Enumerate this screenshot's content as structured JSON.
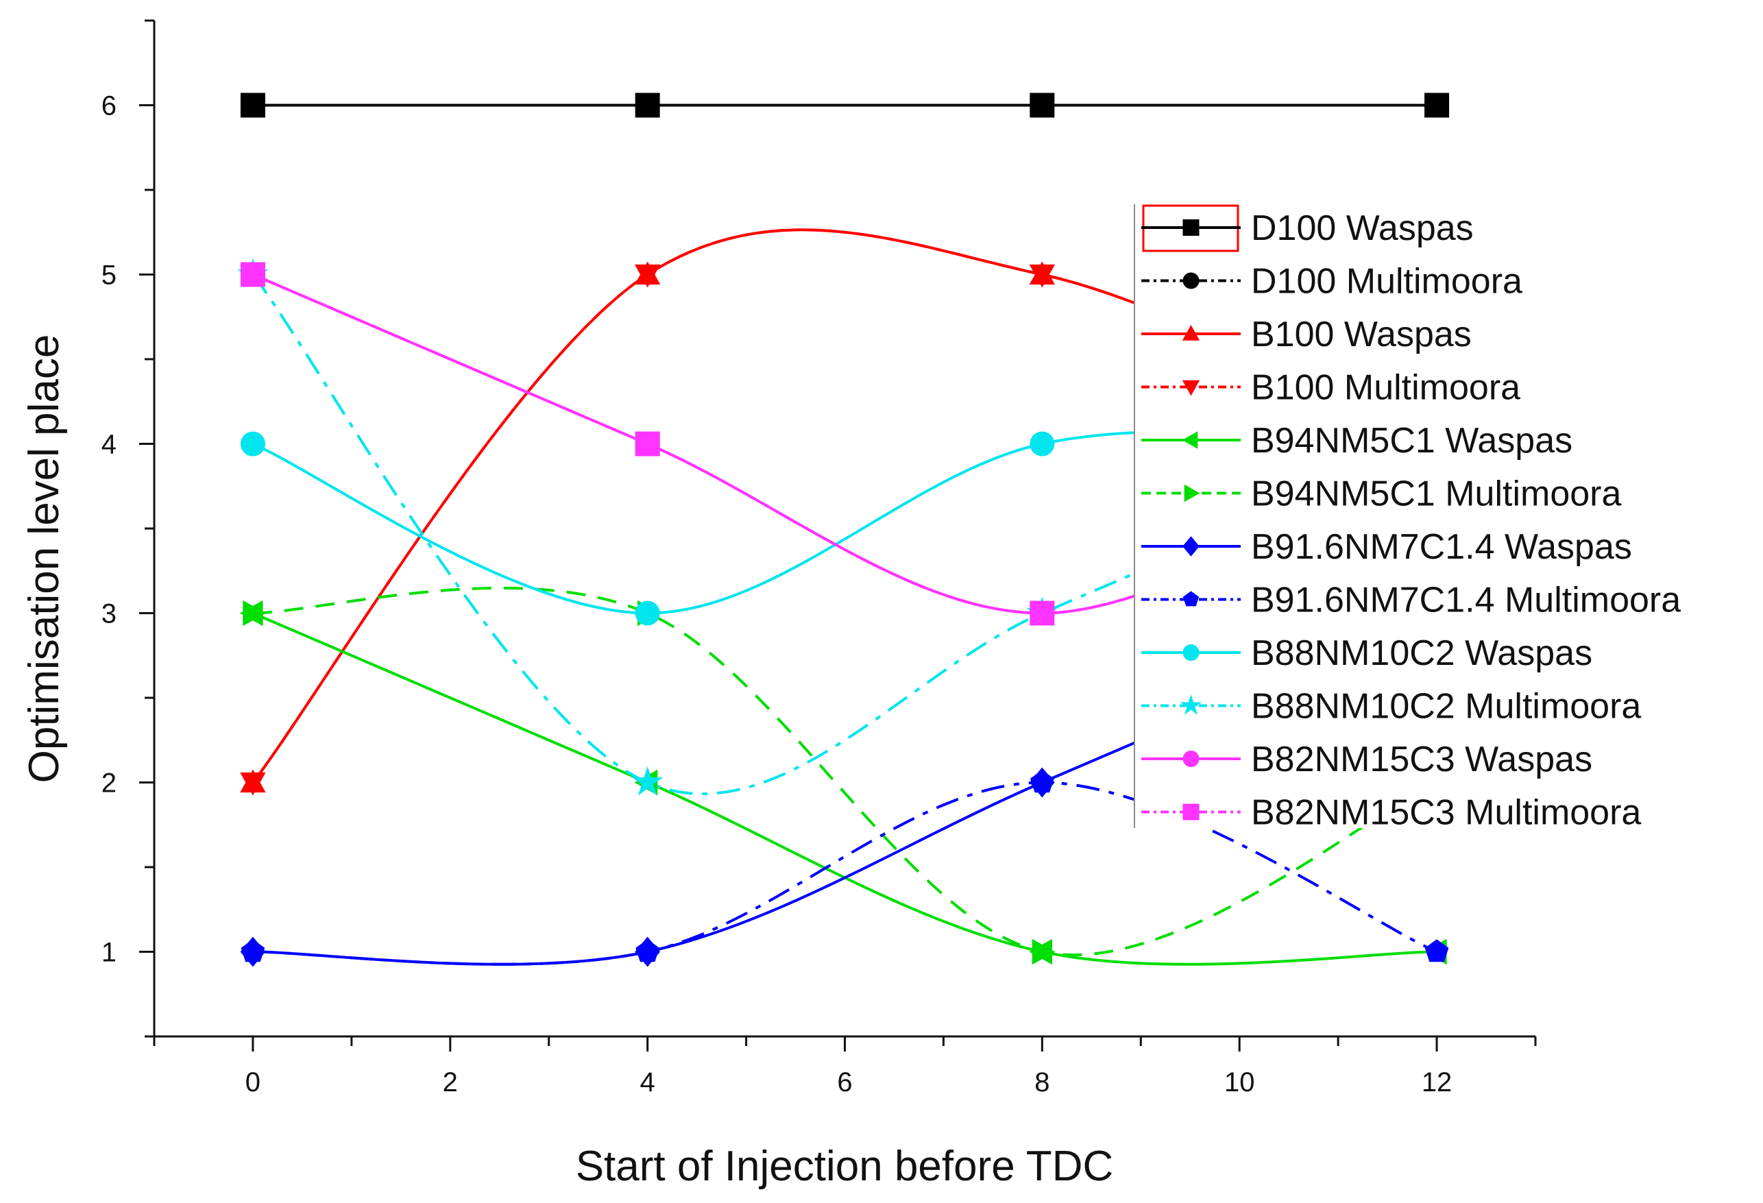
{
  "chart_data": {
    "type": "line",
    "xlabel": "Start of Injection before TDC",
    "ylabel": "Optimisation level place",
    "xlim": [
      -1,
      13
    ],
    "ylim": [
      0.5,
      6.5
    ],
    "x_ticks": [
      0,
      2,
      4,
      6,
      8,
      10,
      12
    ],
    "y_ticks": [
      1,
      2,
      3,
      4,
      5,
      6
    ],
    "x": [
      0,
      4,
      8,
      12
    ],
    "grid": false,
    "legend_position": "right",
    "series": [
      {
        "name": "D100 Waspas",
        "values": [
          6,
          6,
          6,
          6
        ],
        "color": "#000000",
        "marker": "square",
        "line": "solid"
      },
      {
        "name": "D100 Multimoora",
        "values": [
          6,
          6,
          6,
          6
        ],
        "color": "#000000",
        "marker": "circle",
        "line": "dashdot"
      },
      {
        "name": "B100 Waspas",
        "values": [
          2,
          5,
          5,
          4
        ],
        "color": "#ff0000",
        "marker": "triangle-up",
        "line": "solid"
      },
      {
        "name": "B100 Multimoora",
        "values": [
          2,
          5,
          5,
          4
        ],
        "color": "#ff0000",
        "marker": "triangle-down",
        "line": "dashdot"
      },
      {
        "name": "B94NM5C1 Waspas",
        "values": [
          3,
          2,
          1,
          1
        ],
        "color": "#00dd00",
        "marker": "triangle-left",
        "line": "solid"
      },
      {
        "name": "B94NM5C1 Multimoora",
        "values": [
          3,
          3,
          1,
          2
        ],
        "color": "#00dd00",
        "marker": "triangle-right",
        "line": "dash"
      },
      {
        "name": "B91.6NM7C1.4 Waspas",
        "values": [
          1,
          1,
          2,
          3
        ],
        "color": "#0000ff",
        "marker": "diamond",
        "line": "solid"
      },
      {
        "name": "B91.6NM7C1.4 Multimoora",
        "values": [
          1,
          1,
          2,
          1
        ],
        "color": "#0000ff",
        "marker": "pentagon",
        "line": "dashdot"
      },
      {
        "name": "B88NM10C2 Waspas",
        "values": [
          4,
          3,
          4,
          4
        ],
        "color": "#00e5ee",
        "marker": "circle",
        "line": "solid"
      },
      {
        "name": "B88NM10C2 Multimoora",
        "values": [
          5,
          2,
          3,
          4
        ],
        "color": "#00e5ee",
        "marker": "star",
        "line": "dashdot"
      },
      {
        "name": "B82NM15C3 Waspas",
        "values": [
          5,
          4,
          3,
          4
        ],
        "color": "#ff33ff",
        "marker": "circle",
        "line": "solid"
      },
      {
        "name": "B82NM15C3 Multimoora",
        "values": [
          5,
          4,
          3,
          4
        ],
        "color": "#ff33ff",
        "marker": "square",
        "line": "dashdot"
      }
    ]
  }
}
